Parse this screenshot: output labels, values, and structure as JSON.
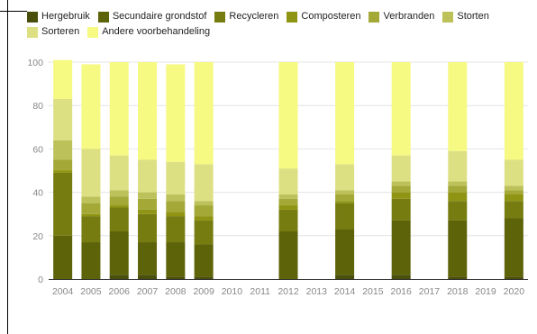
{
  "chart_data": {
    "type": "bar",
    "stacked": true,
    "categories": [
      "2004",
      "2005",
      "2006",
      "2007",
      "2008",
      "2009",
      "2010",
      "2011",
      "2012",
      "2013",
      "2014",
      "2015",
      "2016",
      "2017",
      "2018",
      "2019",
      "2020"
    ],
    "ylim": [
      0,
      100
    ],
    "yticks": [
      0,
      20,
      40,
      60,
      80,
      100
    ],
    "grid": true,
    "legend_position": "top-left",
    "series": [
      {
        "name": "Hergebruik",
        "color": "#4a4e0c",
        "values": [
          0,
          0,
          2,
          2,
          1,
          1,
          null,
          null,
          0,
          null,
          2,
          null,
          2,
          null,
          1,
          null,
          1
        ]
      },
      {
        "name": "Secundaire grondstof",
        "color": "#5d6308",
        "values": [
          20,
          17,
          20,
          15,
          16,
          15,
          null,
          null,
          22,
          null,
          21,
          null,
          25,
          null,
          26,
          null,
          27
        ]
      },
      {
        "name": "Recycleren",
        "color": "#767c10",
        "values": [
          29,
          12,
          11,
          13,
          12,
          11,
          null,
          null,
          10,
          null,
          12,
          null,
          10,
          null,
          9,
          null,
          8
        ]
      },
      {
        "name": "Composteren",
        "color": "#8f9412",
        "values": [
          1,
          1,
          1,
          2,
          2,
          2,
          null,
          null,
          2,
          null,
          1,
          null,
          3,
          null,
          4,
          null,
          3
        ]
      },
      {
        "name": "Verbranden",
        "color": "#a3a837",
        "values": [
          5,
          5,
          4,
          5,
          5,
          5,
          null,
          null,
          3,
          null,
          3,
          null,
          3,
          null,
          3,
          null,
          2
        ]
      },
      {
        "name": "Storten",
        "color": "#bcc15a",
        "values": [
          9,
          3,
          3,
          3,
          3,
          2,
          null,
          null,
          2,
          null,
          2,
          null,
          2,
          null,
          2,
          null,
          2
        ]
      },
      {
        "name": "Sorteren",
        "color": "#dde082",
        "values": [
          19,
          22,
          16,
          15,
          15,
          17,
          null,
          null,
          12,
          null,
          12,
          null,
          12,
          null,
          14,
          null,
          12
        ]
      },
      {
        "name": "Andere voorbehandeling",
        "color": "#f6f982",
        "values": [
          18,
          39,
          43,
          45,
          45,
          47,
          null,
          null,
          49,
          null,
          47,
          null,
          43,
          null,
          41,
          null,
          45
        ]
      }
    ]
  }
}
